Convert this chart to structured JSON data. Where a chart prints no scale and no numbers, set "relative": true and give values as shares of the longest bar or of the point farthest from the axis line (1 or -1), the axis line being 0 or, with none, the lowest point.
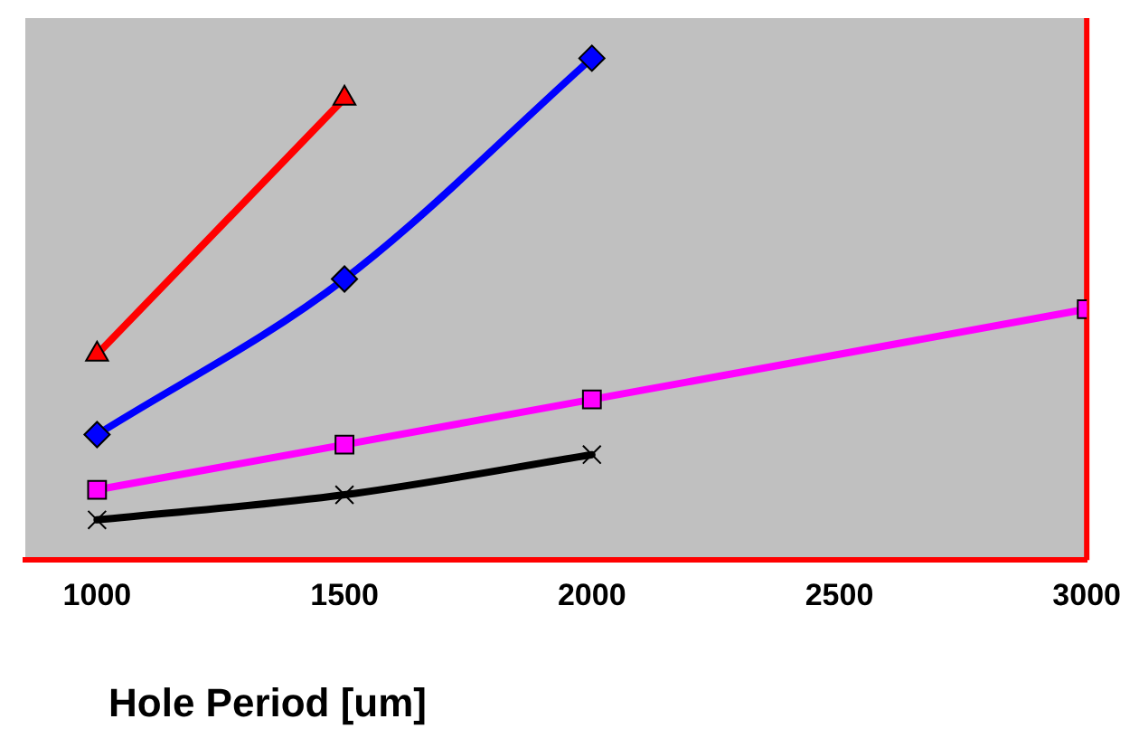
{
  "chart_data": {
    "type": "line",
    "xlabel": "Hole Period [um]",
    "relative": true,
    "xlim": [
      855,
      3000
    ],
    "xticks": [
      1000,
      1500,
      2000,
      2500,
      3000
    ],
    "grid": false,
    "legend": false,
    "series": [
      {
        "color": "#ff0000",
        "marker": "triangle",
        "x": [
          1000,
          1500
        ],
        "values": [
          0.41,
          0.92
        ]
      },
      {
        "color": "#0000ff",
        "marker": "diamond",
        "x": [
          1000,
          1500,
          2000
        ],
        "values": [
          0.25,
          0.56,
          1
        ]
      },
      {
        "color": "#ff00ff",
        "marker": "square",
        "x": [
          1000,
          1500,
          2000,
          3000
        ],
        "values": [
          0.14,
          0.23,
          0.32,
          0.5
        ]
      },
      {
        "color": "#000000",
        "marker": "cross",
        "x": [
          1000,
          1500,
          2000
        ],
        "values": [
          0.08,
          0.13,
          0.21
        ]
      }
    ]
  }
}
